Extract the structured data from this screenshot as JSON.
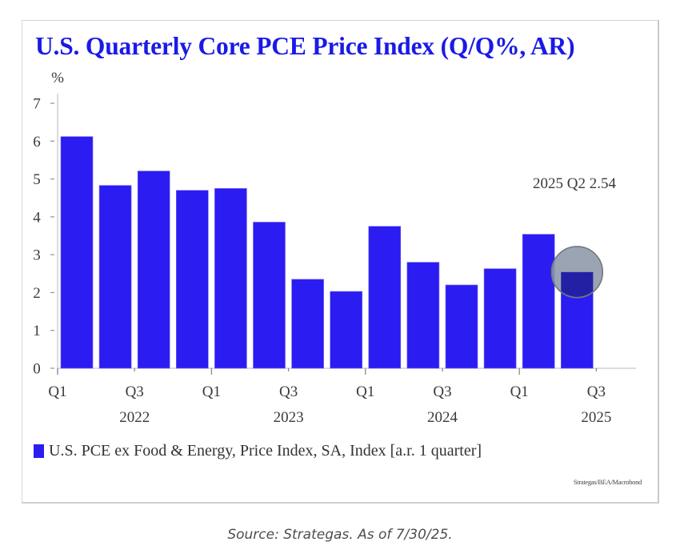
{
  "chart_data": {
    "type": "bar",
    "title": "U.S. Quarterly Core PCE Price Index (Q/Q%, AR)",
    "ylabel": "%",
    "xlabel": "",
    "ylim": [
      0,
      7
    ],
    "yticks": [
      0,
      1,
      2,
      3,
      4,
      5,
      6,
      7
    ],
    "grid": false,
    "categories": [
      "2022 Q1",
      "2022 Q2",
      "2022 Q3",
      "2022 Q4",
      "2023 Q1",
      "2023 Q2",
      "2023 Q3",
      "2023 Q4",
      "2024 Q1",
      "2024 Q2",
      "2024 Q3",
      "2024 Q4",
      "2025 Q1",
      "2025 Q2"
    ],
    "series": [
      {
        "name": "U.S. PCE ex Food & Energy, Price Index, SA, Index [a.r. 1 quarter]",
        "color": "#2b1cf2",
        "values": [
          6.12,
          4.83,
          5.21,
          4.7,
          4.75,
          3.86,
          2.35,
          2.03,
          3.75,
          2.8,
          2.2,
          2.63,
          3.54,
          2.54
        ]
      }
    ],
    "xticks": [
      {
        "label": "Q1",
        "year": "2022",
        "quarter_index": 0,
        "major": true
      },
      {
        "label": "Q3",
        "year": "",
        "quarter_index": 2,
        "major": false
      },
      {
        "label": "Q1",
        "year": "",
        "quarter_index": 4,
        "major": true
      },
      {
        "label": "Q3",
        "year": "",
        "quarter_index": 6,
        "major": false
      },
      {
        "label": "Q1",
        "year": "",
        "quarter_index": 8,
        "major": true
      },
      {
        "label": "Q3",
        "year": "",
        "quarter_index": 10,
        "major": false
      },
      {
        "label": "Q1",
        "year": "",
        "quarter_index": 12,
        "major": true
      },
      {
        "label": "Q3",
        "year": "",
        "quarter_index": 14,
        "major": false
      }
    ],
    "year_labels": [
      {
        "label": "2022",
        "quarter_index": 2
      },
      {
        "label": "2023",
        "quarter_index": 6
      },
      {
        "label": "2024",
        "quarter_index": 10
      },
      {
        "label": "2025",
        "quarter_index": 14
      }
    ],
    "annotation": {
      "text": "2025 Q2 2.54",
      "highlight_category": "2025 Q2",
      "highlight_value": 2.54
    },
    "legend": "bottom-left"
  },
  "legend_label": "U.S. PCE ex Food & Energy, Price Index, SA, Index [a.r. 1 quarter]",
  "chart_source": "Strategas/BEA/Macrobond",
  "caption": "Source: Strategas. As of 7/30/25.",
  "colors": {
    "title": "#1a1ae6",
    "bar": "#2b1cf2",
    "highlight_circle": "#8d97a8"
  }
}
